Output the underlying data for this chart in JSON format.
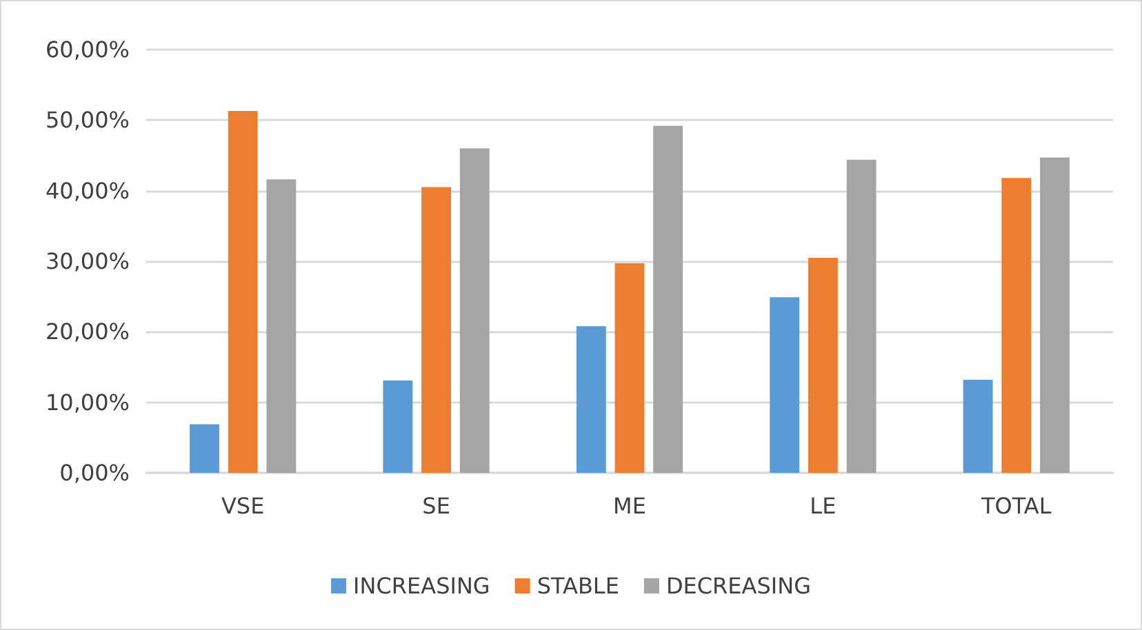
{
  "chart_data": {
    "type": "bar",
    "categories": [
      "VSE",
      "SE",
      "ME",
      "LE",
      "TOTAL"
    ],
    "series": [
      {
        "name": "INCREASING",
        "color": "#5b9bd5",
        "values": [
          6.9,
          13.1,
          20.8,
          24.9,
          13.2
        ]
      },
      {
        "name": "STABLE",
        "color": "#ed7d31",
        "values": [
          51.3,
          40.5,
          29.7,
          30.5,
          41.8
        ]
      },
      {
        "name": "DECREASING",
        "color": "#a5a5a5",
        "values": [
          41.6,
          46.0,
          49.2,
          44.4,
          44.7
        ]
      }
    ],
    "ylim": [
      0,
      60
    ],
    "yticks": [
      {
        "value": 0,
        "label": "0,00%"
      },
      {
        "value": 10,
        "label": "10,00%"
      },
      {
        "value": 20,
        "label": "20,00%"
      },
      {
        "value": 30,
        "label": "30,00%"
      },
      {
        "value": 40,
        "label": "40,00%"
      },
      {
        "value": 50,
        "label": "50,00%"
      },
      {
        "value": 60,
        "label": "60,00%"
      }
    ],
    "grid": "y",
    "legend": "bottom"
  }
}
